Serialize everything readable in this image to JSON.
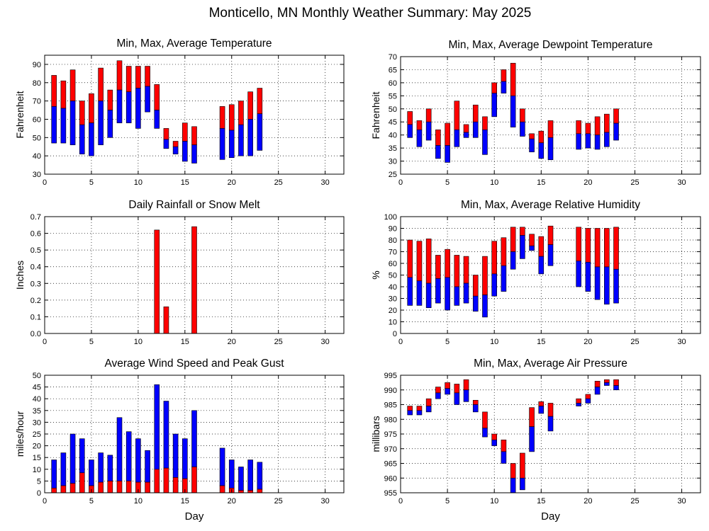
{
  "page": {
    "title": "Monticello, MN Monthly Weather Summary: May 2025"
  },
  "colors": {
    "red": "#ff0000",
    "blue": "#0000ff"
  },
  "chart_data": [
    {
      "id": "temperature",
      "type": "bar",
      "title": "Min, Max, Average Temperature",
      "ylabel": "Fahrenheit",
      "xlabel": "",
      "xlim": [
        0,
        32
      ],
      "ylim": [
        30,
        95
      ],
      "yticks": [
        30,
        40,
        50,
        60,
        70,
        80,
        90
      ],
      "xticks": [
        0,
        5,
        10,
        15,
        20,
        25,
        30
      ],
      "grid": true,
      "style": "range_split",
      "days": [
        1,
        2,
        3,
        4,
        5,
        6,
        7,
        8,
        9,
        10,
        11,
        12,
        13,
        14,
        15,
        16,
        19,
        20,
        21,
        22,
        23
      ],
      "min": [
        47,
        47,
        46,
        41,
        40,
        46,
        50,
        58,
        58,
        55,
        64,
        55,
        44,
        41,
        37,
        36,
        38,
        39,
        40,
        40,
        43
      ],
      "avg": [
        67,
        66,
        70,
        57,
        58,
        70,
        65,
        76,
        75,
        77,
        78,
        65,
        49,
        45,
        48,
        46,
        55,
        54,
        57,
        60,
        63
      ],
      "max": [
        84,
        81,
        87,
        70,
        74,
        88,
        76,
        92,
        89,
        89,
        89,
        79,
        55,
        48,
        58,
        56,
        67,
        68,
        70,
        75,
        77
      ]
    },
    {
      "id": "dewpoint",
      "type": "bar",
      "title": "Min, Max, Average Dewpoint Temperature",
      "ylabel": "Fahrenheit",
      "xlabel": "",
      "xlim": [
        0,
        32
      ],
      "ylim": [
        25,
        70
      ],
      "yticks": [
        25,
        30,
        35,
        40,
        45,
        50,
        55,
        60,
        65,
        70
      ],
      "xticks": [
        0,
        5,
        10,
        15,
        20,
        25,
        30
      ],
      "grid": true,
      "style": "range_split",
      "days": [
        1,
        2,
        3,
        4,
        5,
        6,
        7,
        8,
        9,
        10,
        11,
        12,
        13,
        14,
        15,
        16,
        19,
        20,
        21,
        22,
        23
      ],
      "min": [
        39,
        35.5,
        38,
        31,
        29.5,
        35.5,
        39,
        39,
        32.5,
        47,
        56,
        43,
        39.5,
        33.5,
        31,
        30.5,
        34.5,
        35,
        34.5,
        35.5,
        38
      ],
      "avg": [
        44,
        42,
        45,
        36,
        36,
        42,
        41,
        45,
        42,
        56,
        60.5,
        55,
        45,
        38.5,
        37,
        39,
        40.5,
        40.5,
        40,
        41,
        44.5
      ],
      "max": [
        49,
        45.5,
        50,
        42,
        44.5,
        53,
        44,
        51.5,
        47,
        60,
        65,
        67.5,
        50,
        40.5,
        41.5,
        45.5,
        45.5,
        44.5,
        47,
        48,
        50
      ]
    },
    {
      "id": "rainfall",
      "type": "bar",
      "title": "Daily Rainfall or Snow Melt",
      "ylabel": "Inches",
      "xlabel": "",
      "xlim": [
        0,
        32
      ],
      "ylim": [
        0,
        0.7
      ],
      "yticks": [
        0.0,
        0.1,
        0.2,
        0.3,
        0.4,
        0.5,
        0.6,
        0.7
      ],
      "xticks": [
        0,
        5,
        10,
        15,
        20,
        25,
        30
      ],
      "grid": true,
      "style": "single",
      "days": [
        12,
        13,
        16
      ],
      "values": [
        0.62,
        0.16,
        0.64
      ]
    },
    {
      "id": "humidity",
      "type": "bar",
      "title": "Min, Max, Average Relative Humidity",
      "ylabel": "%",
      "xlabel": "",
      "xlim": [
        0,
        32
      ],
      "ylim": [
        0,
        100
      ],
      "yticks": [
        0,
        10,
        20,
        30,
        40,
        50,
        60,
        70,
        80,
        90,
        100
      ],
      "xticks": [
        0,
        5,
        10,
        15,
        20,
        25,
        30
      ],
      "grid": true,
      "style": "range_split",
      "days": [
        1,
        2,
        3,
        4,
        5,
        6,
        7,
        8,
        9,
        10,
        11,
        12,
        13,
        14,
        15,
        16,
        19,
        20,
        21,
        22,
        23
      ],
      "min": [
        24,
        24,
        22,
        26,
        20,
        24,
        26,
        19,
        14,
        32,
        36,
        55,
        64,
        71,
        51,
        58,
        40,
        36,
        29,
        25,
        26
      ],
      "avg": [
        48,
        45,
        43,
        47,
        48,
        40,
        43,
        32,
        33,
        51,
        58,
        70,
        84,
        75,
        66,
        76,
        62,
        61,
        57,
        57,
        55
      ],
      "max": [
        80,
        79,
        81,
        67,
        72,
        67,
        66,
        50,
        66,
        79,
        82,
        91,
        91,
        85,
        83,
        92,
        91,
        90,
        90,
        90,
        91
      ]
    },
    {
      "id": "wind",
      "type": "bar",
      "title": "Average Wind Speed and Peak Gust",
      "ylabel": "miles/hour",
      "xlabel": "Day",
      "xlim": [
        0,
        32
      ],
      "ylim": [
        0,
        50
      ],
      "yticks": [
        0,
        5,
        10,
        15,
        20,
        25,
        30,
        35,
        40,
        45,
        50
      ],
      "xticks": [
        0,
        5,
        10,
        15,
        20,
        25,
        30
      ],
      "grid": true,
      "style": "stack_pair",
      "days": [
        1,
        2,
        3,
        4,
        5,
        6,
        7,
        8,
        9,
        10,
        11,
        12,
        13,
        14,
        15,
        16,
        19,
        20,
        21,
        22,
        23
      ],
      "series": [
        {
          "name": "Average Wind Speed",
          "color": "red",
          "values": [
            2,
            3,
            4,
            8.5,
            3,
            4.5,
            5,
            5,
            5,
            4.5,
            4.5,
            10,
            10.5,
            6.5,
            6,
            11,
            3,
            2,
            1,
            1,
            1.5
          ]
        },
        {
          "name": "Peak Gust",
          "color": "blue",
          "values": [
            14,
            17,
            25,
            23,
            14,
            17,
            16,
            32,
            26,
            23,
            18,
            46,
            39,
            25,
            23,
            35,
            19,
            14,
            11,
            14,
            13
          ]
        }
      ]
    },
    {
      "id": "pressure",
      "type": "bar",
      "title": "Min, Max, Average Air Pressure",
      "ylabel": "millibars",
      "xlabel": "Day",
      "xlim": [
        0,
        32
      ],
      "ylim": [
        955,
        995
      ],
      "yticks": [
        955,
        960,
        965,
        970,
        975,
        980,
        985,
        990,
        995
      ],
      "xticks": [
        0,
        5,
        10,
        15,
        20,
        25,
        30
      ],
      "grid": true,
      "style": "range_split",
      "days": [
        1,
        2,
        3,
        4,
        5,
        6,
        7,
        8,
        9,
        10,
        11,
        12,
        13,
        14,
        15,
        16,
        19,
        20,
        21,
        22,
        23
      ],
      "min": [
        981.5,
        981.5,
        982.5,
        987,
        988.5,
        985,
        986,
        982.5,
        974,
        971,
        965,
        955,
        956,
        969,
        982,
        976,
        984.5,
        985.5,
        988.5,
        991.5,
        990
      ],
      "avg": [
        983,
        983,
        984.5,
        989,
        990.5,
        989,
        990,
        985,
        977,
        973,
        969,
        960,
        960,
        977.5,
        984.5,
        981,
        985.5,
        987,
        991,
        992.5,
        991.5
      ],
      "max": [
        984.5,
        984.5,
        987,
        991,
        992.5,
        992,
        993.5,
        986.5,
        982.5,
        975,
        973,
        965,
        968.5,
        984,
        986,
        985.5,
        987,
        988.5,
        993,
        993.5,
        993.5
      ]
    }
  ]
}
